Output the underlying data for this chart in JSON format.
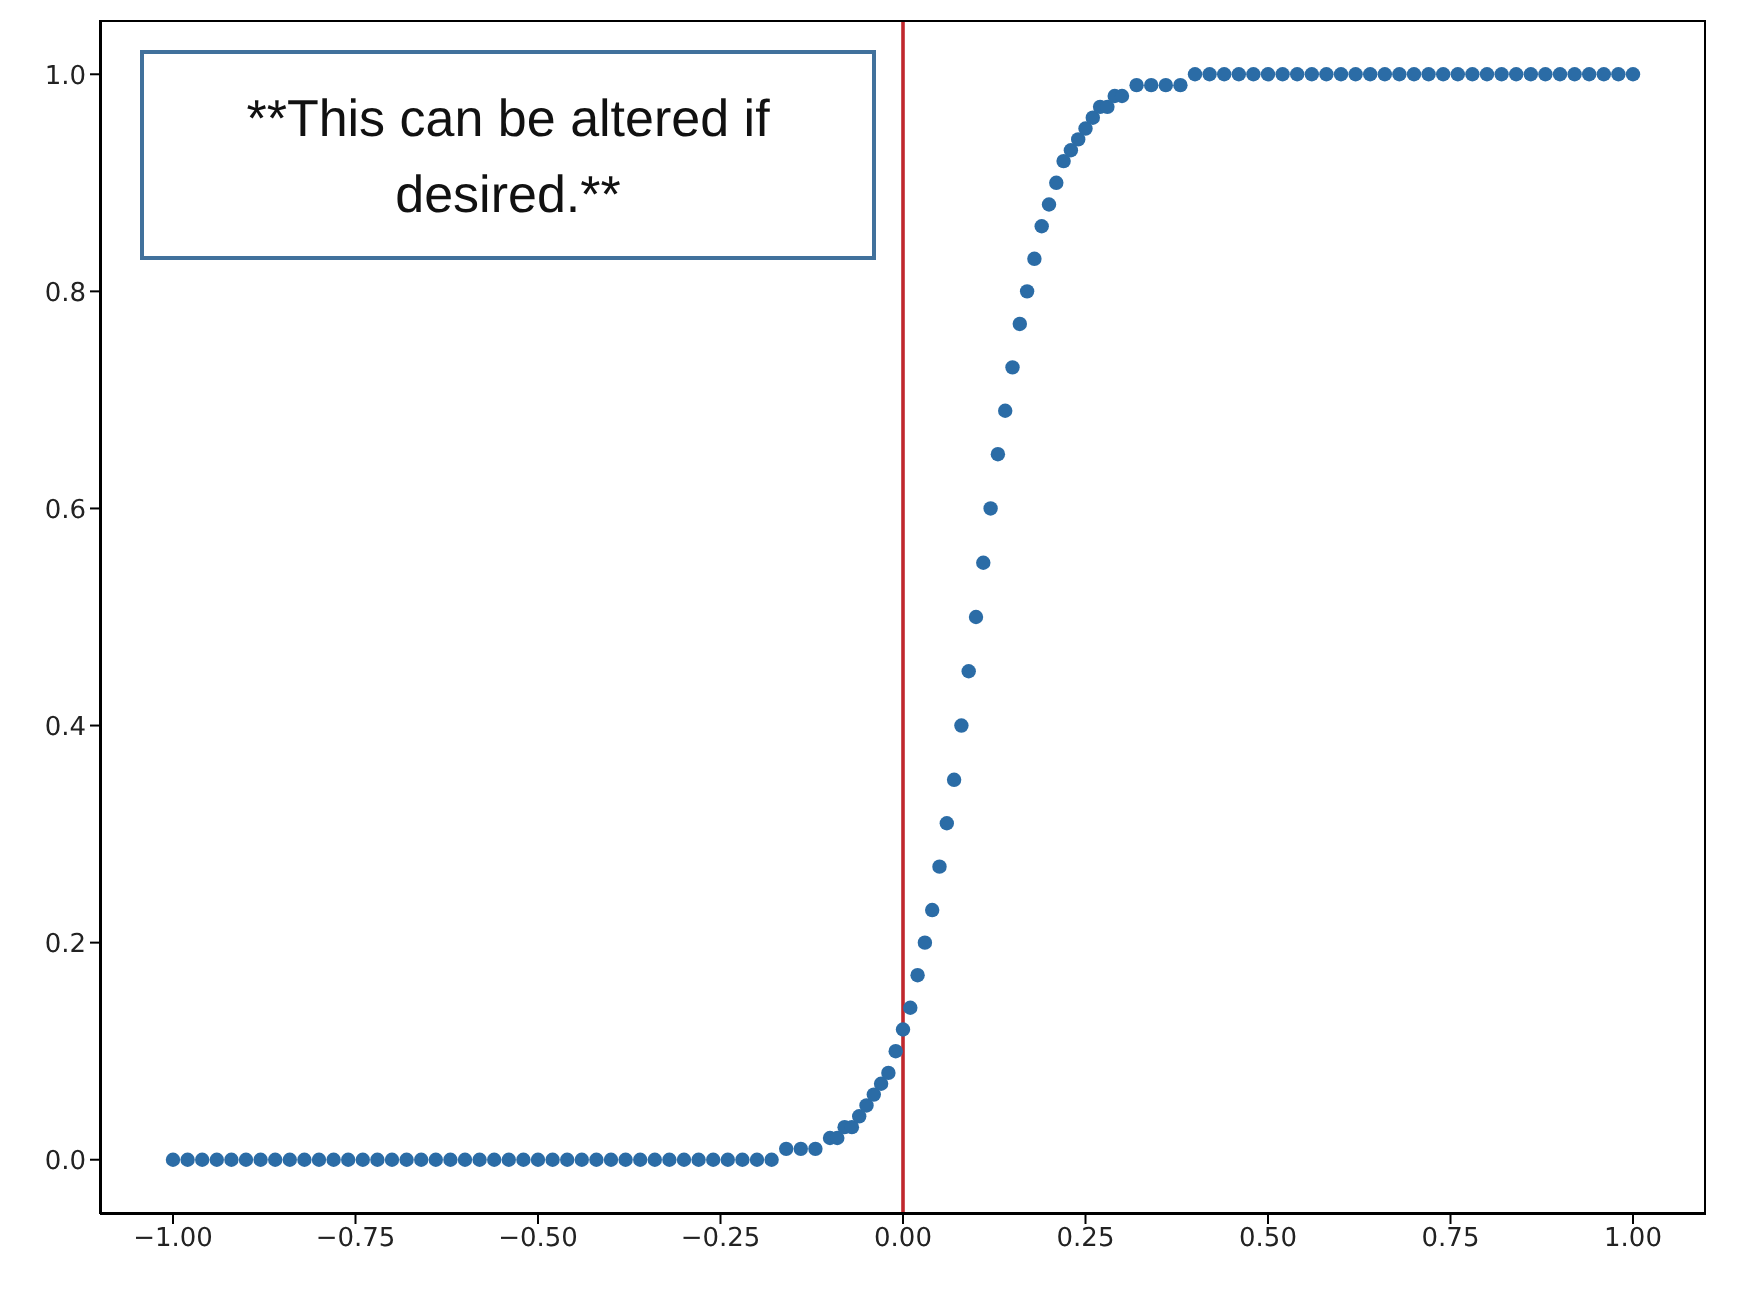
{
  "chart_data": {
    "type": "scatter",
    "marker": "circle",
    "grid": false,
    "annotations": [
      "**This can be altered if desired.**"
    ],
    "xlim": [
      -1.1,
      1.1
    ],
    "ylim": [
      -0.05,
      1.05
    ],
    "xticks": [
      {
        "value": -1,
        "label": "−1.00"
      },
      {
        "value": -0.75,
        "label": "−0.75"
      },
      {
        "value": -0.5,
        "label": "−0.50"
      },
      {
        "value": -0.25,
        "label": "−0.25"
      },
      {
        "value": 0,
        "label": "0.00"
      },
      {
        "value": 0.25,
        "label": "0.25"
      },
      {
        "value": 0.5,
        "label": "0.50"
      },
      {
        "value": 0.75,
        "label": "0.75"
      },
      {
        "value": 1,
        "label": "1.00"
      }
    ],
    "yticks": [
      {
        "value": 0,
        "label": "0.0"
      },
      {
        "value": 0.2,
        "label": "0.2"
      },
      {
        "value": 0.4,
        "label": "0.4"
      },
      {
        "value": 0.6,
        "label": "0.6"
      },
      {
        "value": 0.8,
        "label": "0.8"
      },
      {
        "value": 1,
        "label": "1.0"
      }
    ],
    "ref_lines": [
      {
        "axis": "x",
        "value": 0,
        "color": "#c0282d"
      }
    ],
    "series": [
      {
        "color": "#2b6ca6",
        "x": [
          -1,
          -0.98,
          -0.96,
          -0.94,
          -0.92,
          -0.9,
          -0.88,
          -0.86,
          -0.84,
          -0.82,
          -0.8,
          -0.78,
          -0.76,
          -0.74,
          -0.72,
          -0.7,
          -0.68,
          -0.66,
          -0.64,
          -0.62,
          -0.6,
          -0.58,
          -0.56,
          -0.54,
          -0.52,
          -0.5,
          -0.48,
          -0.46,
          -0.44,
          -0.42,
          -0.4,
          -0.38,
          -0.36,
          -0.34,
          -0.32,
          -0.3,
          -0.28,
          -0.26,
          -0.24,
          -0.22,
          -0.2,
          -0.18,
          -0.16,
          -0.14,
          -0.12,
          -0.1,
          -0.09,
          -0.08,
          -0.07,
          -0.06,
          -0.05,
          -0.04,
          -0.03,
          -0.02,
          -0.01,
          0,
          0.01,
          0.02,
          0.03,
          0.04,
          0.05,
          0.06,
          0.07,
          0.08,
          0.09,
          0.1,
          0.11,
          0.12,
          0.13,
          0.14,
          0.15,
          0.16,
          0.17,
          0.18,
          0.19,
          0.2,
          0.21,
          0.22,
          0.23,
          0.24,
          0.25,
          0.26,
          0.27,
          0.28,
          0.29,
          0.3,
          0.32,
          0.34,
          0.36,
          0.38,
          0.4,
          0.42,
          0.44,
          0.46,
          0.48,
          0.5,
          0.52,
          0.54,
          0.56,
          0.58,
          0.6,
          0.62,
          0.64,
          0.66,
          0.68,
          0.7,
          0.72,
          0.74,
          0.76,
          0.78,
          0.8,
          0.82,
          0.84,
          0.86,
          0.88,
          0.9,
          0.92,
          0.94,
          0.96,
          0.98,
          1
        ],
        "values": [
          0,
          0,
          0,
          0,
          0,
          0,
          0,
          0,
          0,
          0,
          0,
          0,
          0,
          0,
          0,
          0,
          0,
          0,
          0,
          0,
          0,
          0,
          0,
          0,
          0,
          0,
          0,
          0,
          0,
          0,
          0,
          0,
          0,
          0,
          0,
          0,
          0,
          0,
          0,
          0,
          0,
          0,
          0.01,
          0.01,
          0.01,
          0.02,
          0.02,
          0.03,
          0.03,
          0.04,
          0.05,
          0.06,
          0.07,
          0.08,
          0.1,
          0.12,
          0.14,
          0.17,
          0.2,
          0.23,
          0.27,
          0.31,
          0.35,
          0.4,
          0.45,
          0.5,
          0.55,
          0.6,
          0.65,
          0.69,
          0.73,
          0.77,
          0.8,
          0.83,
          0.86,
          0.88,
          0.9,
          0.92,
          0.93,
          0.94,
          0.95,
          0.96,
          0.97,
          0.97,
          0.98,
          0.98,
          0.99,
          0.99,
          0.99,
          0.99,
          1,
          1,
          1,
          1,
          1,
          1,
          1,
          1,
          1,
          1,
          1,
          1,
          1,
          1,
          1,
          1,
          1,
          1,
          1,
          1,
          1,
          1,
          1,
          1,
          1,
          1,
          1,
          1,
          1,
          1,
          1
        ]
      }
    ]
  }
}
